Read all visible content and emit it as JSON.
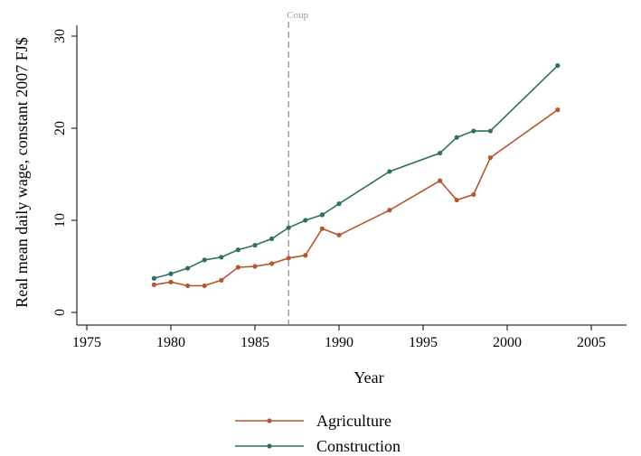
{
  "chart_data": {
    "type": "line",
    "title": "",
    "xlabel": "Year",
    "ylabel": "Real mean daily wage, constant 2007 FJ$",
    "xlim": [
      1974,
      2008
    ],
    "ylim": [
      0,
      30
    ],
    "x_ticks": [
      1975,
      1980,
      1985,
      1990,
      1995,
      2000,
      2005
    ],
    "y_ticks": [
      0,
      10,
      20,
      30
    ],
    "grid": false,
    "legend_position": "bottom",
    "annotation": {
      "label": "Coup",
      "x": 1987,
      "color": "#8a8a8a",
      "style": "dashed"
    },
    "series": [
      {
        "name": "Agriculture",
        "color": "#b5562f",
        "x": [
          1979,
          1980,
          1981,
          1982,
          1983,
          1984,
          1985,
          1986,
          1987,
          1988,
          1989,
          1990,
          1993,
          1996,
          1997,
          1998,
          1999,
          2003
        ],
        "y": [
          3.0,
          3.3,
          2.9,
          2.9,
          3.5,
          4.9,
          5.0,
          5.3,
          5.9,
          6.2,
          9.1,
          8.4,
          11.1,
          14.3,
          12.2,
          12.8,
          16.8,
          22.0
        ]
      },
      {
        "name": "Construction",
        "color": "#2e6e65",
        "x": [
          1979,
          1980,
          1981,
          1982,
          1983,
          1984,
          1985,
          1986,
          1987,
          1988,
          1989,
          1990,
          1993,
          1996,
          1997,
          1998,
          1999,
          2003
        ],
        "y": [
          3.7,
          4.2,
          4.8,
          5.7,
          6.0,
          6.8,
          7.3,
          8.0,
          9.2,
          10.0,
          10.6,
          11.8,
          15.3,
          17.3,
          19.0,
          19.7,
          19.7,
          26.8
        ]
      }
    ]
  }
}
